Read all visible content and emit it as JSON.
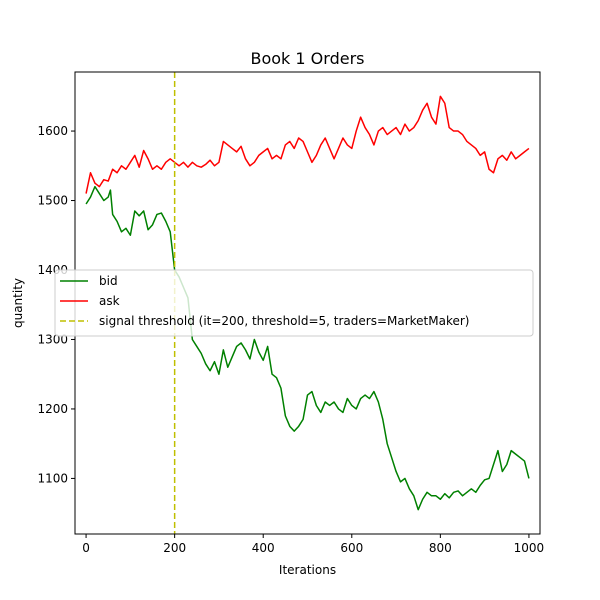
{
  "chart_data": {
    "type": "line",
    "title": "Book 1 Orders",
    "xlabel": "Iterations",
    "ylabel": "quantity",
    "xlim": [
      -25,
      1025
    ],
    "ylim": [
      1020,
      1685
    ],
    "xticks": [
      0,
      200,
      400,
      600,
      800,
      1000
    ],
    "yticks": [
      1100,
      1200,
      1300,
      1400,
      1500,
      1600
    ],
    "grid": false,
    "legend_placement": "center-left",
    "series": [
      {
        "name": "bid",
        "color": "#008000",
        "x": [
          0,
          10,
          20,
          30,
          40,
          50,
          55,
          60,
          70,
          80,
          90,
          100,
          110,
          120,
          130,
          140,
          150,
          160,
          170,
          180,
          190,
          200,
          210,
          220,
          230,
          240,
          250,
          260,
          270,
          280,
          290,
          300,
          310,
          320,
          330,
          340,
          350,
          360,
          370,
          380,
          390,
          400,
          410,
          420,
          430,
          440,
          450,
          460,
          470,
          480,
          490,
          500,
          510,
          520,
          530,
          540,
          550,
          560,
          570,
          580,
          590,
          600,
          610,
          620,
          630,
          640,
          650,
          660,
          670,
          680,
          690,
          700,
          710,
          720,
          730,
          740,
          750,
          760,
          770,
          780,
          790,
          800,
          810,
          820,
          830,
          840,
          850,
          860,
          870,
          880,
          890,
          900,
          910,
          920,
          930,
          940,
          950,
          960,
          970,
          980,
          990,
          1000
        ],
        "values": [
          1495,
          1505,
          1520,
          1510,
          1500,
          1505,
          1515,
          1480,
          1470,
          1455,
          1460,
          1450,
          1485,
          1478,
          1485,
          1458,
          1465,
          1480,
          1482,
          1470,
          1455,
          1400,
          1390,
          1375,
          1360,
          1300,
          1290,
          1280,
          1265,
          1255,
          1268,
          1250,
          1285,
          1260,
          1275,
          1290,
          1295,
          1285,
          1272,
          1300,
          1282,
          1270,
          1290,
          1250,
          1245,
          1230,
          1190,
          1175,
          1168,
          1175,
          1185,
          1220,
          1225,
          1205,
          1195,
          1210,
          1205,
          1210,
          1200,
          1195,
          1215,
          1205,
          1200,
          1215,
          1220,
          1215,
          1225,
          1210,
          1185,
          1150,
          1130,
          1110,
          1095,
          1100,
          1085,
          1075,
          1055,
          1070,
          1080,
          1075,
          1075,
          1070,
          1078,
          1072,
          1080,
          1082,
          1075,
          1080,
          1085,
          1080,
          1090,
          1098,
          1100,
          1120,
          1140,
          1110,
          1120,
          1140,
          1135,
          1130,
          1125,
          1100
        ]
      },
      {
        "name": "ask",
        "color": "#ff0000",
        "x": [
          0,
          10,
          20,
          30,
          40,
          50,
          60,
          70,
          80,
          90,
          100,
          110,
          120,
          130,
          140,
          150,
          160,
          170,
          180,
          190,
          200,
          210,
          220,
          230,
          240,
          250,
          260,
          270,
          280,
          290,
          300,
          310,
          320,
          330,
          340,
          350,
          360,
          370,
          380,
          390,
          400,
          410,
          420,
          430,
          440,
          450,
          460,
          470,
          480,
          490,
          500,
          510,
          520,
          530,
          540,
          550,
          560,
          570,
          580,
          590,
          600,
          610,
          620,
          630,
          640,
          650,
          660,
          670,
          680,
          690,
          700,
          710,
          720,
          730,
          740,
          750,
          760,
          770,
          780,
          790,
          800,
          810,
          820,
          830,
          840,
          850,
          860,
          870,
          880,
          890,
          900,
          910,
          920,
          930,
          940,
          950,
          960,
          970,
          980,
          990,
          1000
        ],
        "values": [
          1510,
          1540,
          1525,
          1520,
          1530,
          1528,
          1545,
          1540,
          1550,
          1545,
          1555,
          1565,
          1548,
          1572,
          1560,
          1545,
          1550,
          1545,
          1555,
          1560,
          1555,
          1550,
          1555,
          1548,
          1555,
          1550,
          1548,
          1552,
          1558,
          1550,
          1555,
          1585,
          1580,
          1575,
          1570,
          1578,
          1560,
          1550,
          1555,
          1565,
          1570,
          1575,
          1560,
          1565,
          1560,
          1580,
          1585,
          1575,
          1590,
          1585,
          1570,
          1555,
          1565,
          1580,
          1590,
          1575,
          1560,
          1575,
          1590,
          1580,
          1575,
          1600,
          1620,
          1605,
          1595,
          1580,
          1600,
          1605,
          1595,
          1600,
          1605,
          1595,
          1610,
          1600,
          1605,
          1615,
          1630,
          1640,
          1620,
          1610,
          1650,
          1640,
          1605,
          1600,
          1600,
          1595,
          1585,
          1580,
          1575,
          1565,
          1570,
          1545,
          1540,
          1560,
          1565,
          1558,
          1570,
          1560,
          1565,
          1570,
          1575
        ]
      },
      {
        "name": "signal threshold (it=200, threshold=5, traders=MarketMaker)",
        "color": "#bfbf00",
        "style": "dashed",
        "vertical_line_x": 200
      }
    ]
  }
}
